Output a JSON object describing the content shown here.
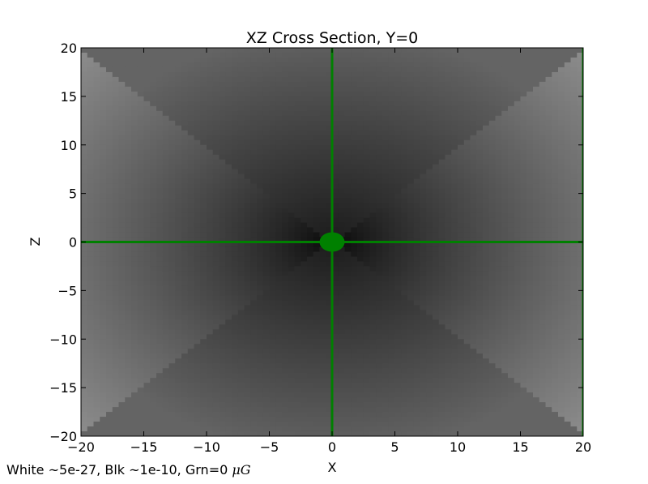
{
  "chart_data": {
    "type": "heatmap",
    "title": "XZ Cross Section, Y=0",
    "xlabel": "X",
    "ylabel": "Z",
    "xlim": [
      -20,
      20
    ],
    "ylim": [
      -20,
      20
    ],
    "x_ticks": [
      -20,
      -15,
      -10,
      -5,
      0,
      5,
      10,
      15,
      20
    ],
    "y_ticks": [
      -20,
      -15,
      -10,
      -5,
      0,
      5,
      10,
      15,
      20
    ],
    "x_tick_labels": [
      "−20",
      "−15",
      "−10",
      "−5",
      "0",
      "5",
      "10",
      "15",
      "20"
    ],
    "y_tick_labels": [
      "−20",
      "−15",
      "−10",
      "−5",
      "0",
      "5",
      "10",
      "15",
      "20"
    ],
    "colormap": "gray",
    "cone_half_angle_deg": 45,
    "cone_apex": [
      0,
      0
    ],
    "zero_field_lines": [
      {
        "orientation": "vertical",
        "x": 0
      },
      {
        "orientation": "horizontal",
        "z": 0
      },
      {
        "orientation": "vertical",
        "x": 20
      }
    ],
    "zero_field_blob": {
      "center": [
        0,
        0
      ],
      "radius": 1
    },
    "zero_color": "#008000",
    "caption_prefix": "White ~5e-27, Blk ~1e-10, Grn=0 ",
    "caption_unit": "μG"
  }
}
